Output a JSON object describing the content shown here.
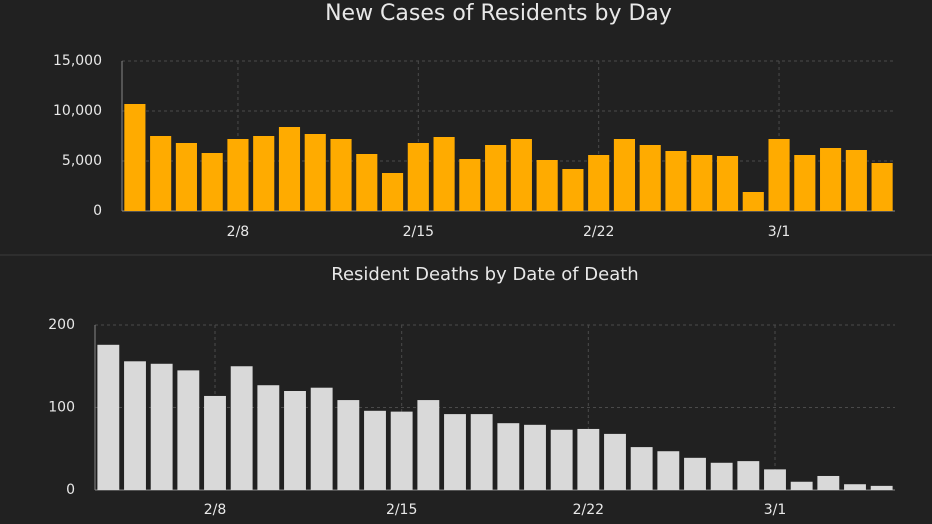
{
  "chart_data": [
    {
      "type": "bar",
      "title": "New Cases of Residents by Day",
      "categories": [
        null,
        null,
        null,
        null,
        "2/8",
        null,
        null,
        null,
        null,
        null,
        null,
        "2/15",
        null,
        null,
        null,
        null,
        null,
        null,
        "2/22",
        null,
        null,
        null,
        null,
        null,
        null,
        "3/1",
        null,
        null,
        null,
        null
      ],
      "values": [
        10700,
        7500,
        6800,
        5800,
        7200,
        7500,
        8400,
        7700,
        7200,
        5700,
        3800,
        6800,
        7400,
        5200,
        6600,
        7200,
        5100,
        4200,
        5600,
        7200,
        6600,
        6000,
        5600,
        5500,
        1900,
        7200,
        5600,
        6300,
        6100,
        4800
      ],
      "color": "#ffab00",
      "ylim": [
        0,
        15000
      ],
      "yticks": [
        0,
        {
          "value": 5000,
          "label": "5,000"
        },
        {
          "value": 10000,
          "label": "10,000"
        },
        {
          "value": 15000,
          "label": "15,000"
        }
      ],
      "grid": true
    },
    {
      "type": "bar",
      "title": "Resident Deaths by Date of Death",
      "categories": [
        null,
        null,
        null,
        null,
        "2/8",
        null,
        null,
        null,
        null,
        null,
        null,
        "2/15",
        null,
        null,
        null,
        null,
        null,
        null,
        "2/22",
        null,
        null,
        null,
        null,
        null,
        null,
        "3/1",
        null,
        null,
        null,
        null
      ],
      "values": [
        176,
        156,
        153,
        145,
        114,
        150,
        127,
        120,
        124,
        109,
        96,
        95,
        109,
        92,
        92,
        81,
        79,
        73,
        74,
        68,
        52,
        47,
        39,
        33,
        35,
        25,
        10,
        17,
        7,
        5
      ],
      "color": "#d9d9d9",
      "ylim": [
        0,
        200
      ],
      "yticks": [
        0,
        100,
        200
      ],
      "grid": true
    }
  ]
}
